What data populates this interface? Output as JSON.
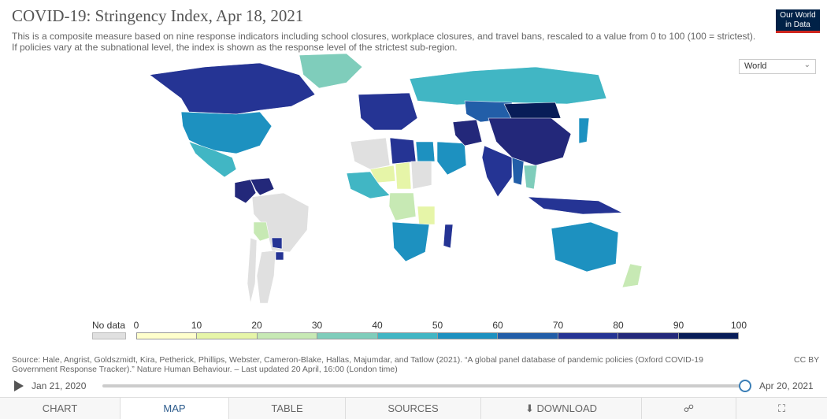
{
  "title": "COVID-19: Stringency Index, Apr 18, 2021",
  "subtitle": "This is a composite measure based on nine response indicators including school closures, workplace closures, and travel bans, rescaled to a value from 0 to 100 (100 = strictest). If policies vary at the subnational level, the index is shown as the response level of the strictest sub-region.",
  "logo": {
    "line1": "Our World",
    "line2": "in Data"
  },
  "region_select": {
    "value": "World"
  },
  "legend": {
    "no_data_label": "No data",
    "ticks": [
      "0",
      "10",
      "20",
      "30",
      "40",
      "50",
      "60",
      "70",
      "80",
      "90",
      "100"
    ],
    "colors": [
      "#ffffcc",
      "#e6f5a8",
      "#c7e9b4",
      "#7fcdbb",
      "#41b6c4",
      "#1d91c0",
      "#225ea8",
      "#253494",
      "#23287a",
      "#081d58"
    ],
    "no_data_color": "#e0e0e0"
  },
  "source": "Source: Hale, Angrist, Goldszmidt, Kira, Petherick, Phillips, Webster, Cameron-Blake, Hallas, Majumdar, and Tatlow (2021). “A global panel database of pandemic policies (Oxford COVID-19 Government Response Tracker).” Nature Human Behaviour. – Last updated 20 April, 16:00 (London time)",
  "license": "CC BY",
  "timeline": {
    "start": "Jan 21, 2020",
    "end": "Apr 20, 2021"
  },
  "tabs": [
    {
      "label": "CHART"
    },
    {
      "label": "MAP"
    },
    {
      "label": "TABLE"
    },
    {
      "label": "SOURCES"
    },
    {
      "label": "DOWNLOAD"
    }
  ],
  "chart_data": {
    "type": "map",
    "title": "COVID-19: Stringency Index, Apr 18, 2021",
    "value_range": [
      0,
      100
    ],
    "regions": [
      {
        "name": "Canada",
        "value": 75
      },
      {
        "name": "United States",
        "value": 55
      },
      {
        "name": "Mexico",
        "value": 45
      },
      {
        "name": "Greenland",
        "value": 35
      },
      {
        "name": "Colombia",
        "value": 80
      },
      {
        "name": "Venezuela",
        "value": 85
      },
      {
        "name": "Brazil",
        "value": null
      },
      {
        "name": "Argentina",
        "value": null
      },
      {
        "name": "Bolivia",
        "value": 20
      },
      {
        "name": "Paraguay",
        "value": 75
      },
      {
        "name": "Uruguay",
        "value": 75
      },
      {
        "name": "Chile",
        "value": null
      },
      {
        "name": "Russia",
        "value": 45
      },
      {
        "name": "Europe",
        "value": 75
      },
      {
        "name": "Algeria",
        "value": null
      },
      {
        "name": "Libya",
        "value": 70
      },
      {
        "name": "Egypt",
        "value": 55
      },
      {
        "name": "Niger",
        "value": 15
      },
      {
        "name": "Chad",
        "value": 15
      },
      {
        "name": "Sudan",
        "value": null
      },
      {
        "name": "Central Africa",
        "value": 45
      },
      {
        "name": "DR Congo",
        "value": 25
      },
      {
        "name": "Tanzania",
        "value": 10
      },
      {
        "name": "Southern Africa",
        "value": 55
      },
      {
        "name": "Madagascar",
        "value": 70
      },
      {
        "name": "Saudi Arabia",
        "value": 50
      },
      {
        "name": "Iran",
        "value": 80
      },
      {
        "name": "Kazakhstan",
        "value": 60
      },
      {
        "name": "Mongolia",
        "value": 90
      },
      {
        "name": "China",
        "value": 80
      },
      {
        "name": "India",
        "value": 70
      },
      {
        "name": "Myanmar",
        "value": 60
      },
      {
        "name": "Thailand",
        "value": 30
      },
      {
        "name": "Indonesia",
        "value": 70
      },
      {
        "name": "Japan",
        "value": 50
      },
      {
        "name": "Australia",
        "value": 50
      },
      {
        "name": "New Zealand",
        "value": 20
      }
    ]
  }
}
